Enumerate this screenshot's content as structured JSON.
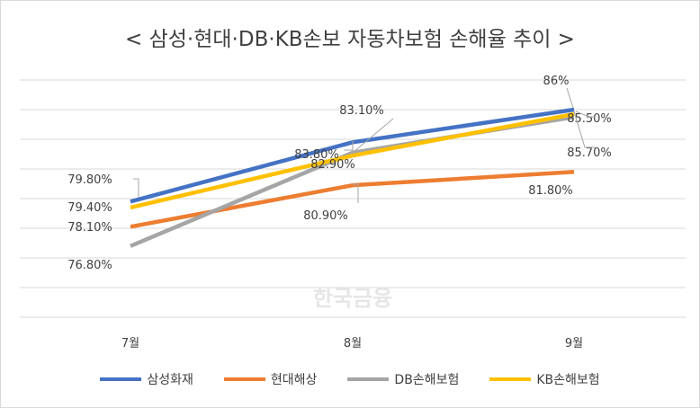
{
  "chart_data": {
    "type": "line",
    "title": "< 삼성·현대·DB·KB손보 자동차보험 손해율 추이 >",
    "categories": [
      "7월",
      "8월",
      "9월"
    ],
    "ylim": [
      72,
      88
    ],
    "grid": true,
    "legend_position": "bottom",
    "series": [
      {
        "name": "삼성화재",
        "color": "#4472c4",
        "values": [
          79.8,
          83.8,
          86
        ],
        "labels": [
          "79.80%",
          "83.80%",
          "86%"
        ]
      },
      {
        "name": "현대해상",
        "color": "#ed7d31",
        "values": [
          78.1,
          80.9,
          81.8
        ],
        "labels": [
          "78.10%",
          "80.90%",
          "81.80%"
        ]
      },
      {
        "name": "DB손해보험",
        "color": "#a5a5a5",
        "values": [
          76.8,
          83.1,
          85.5
        ],
        "labels": [
          "76.80%",
          "83.10%",
          "85.50%"
        ]
      },
      {
        "name": "KB손해보험",
        "color": "#ffc000",
        "values": [
          79.4,
          82.9,
          85.7
        ],
        "labels": [
          "79.40%",
          "82.90%",
          "85.70%"
        ]
      }
    ]
  },
  "watermark": "한국금융"
}
